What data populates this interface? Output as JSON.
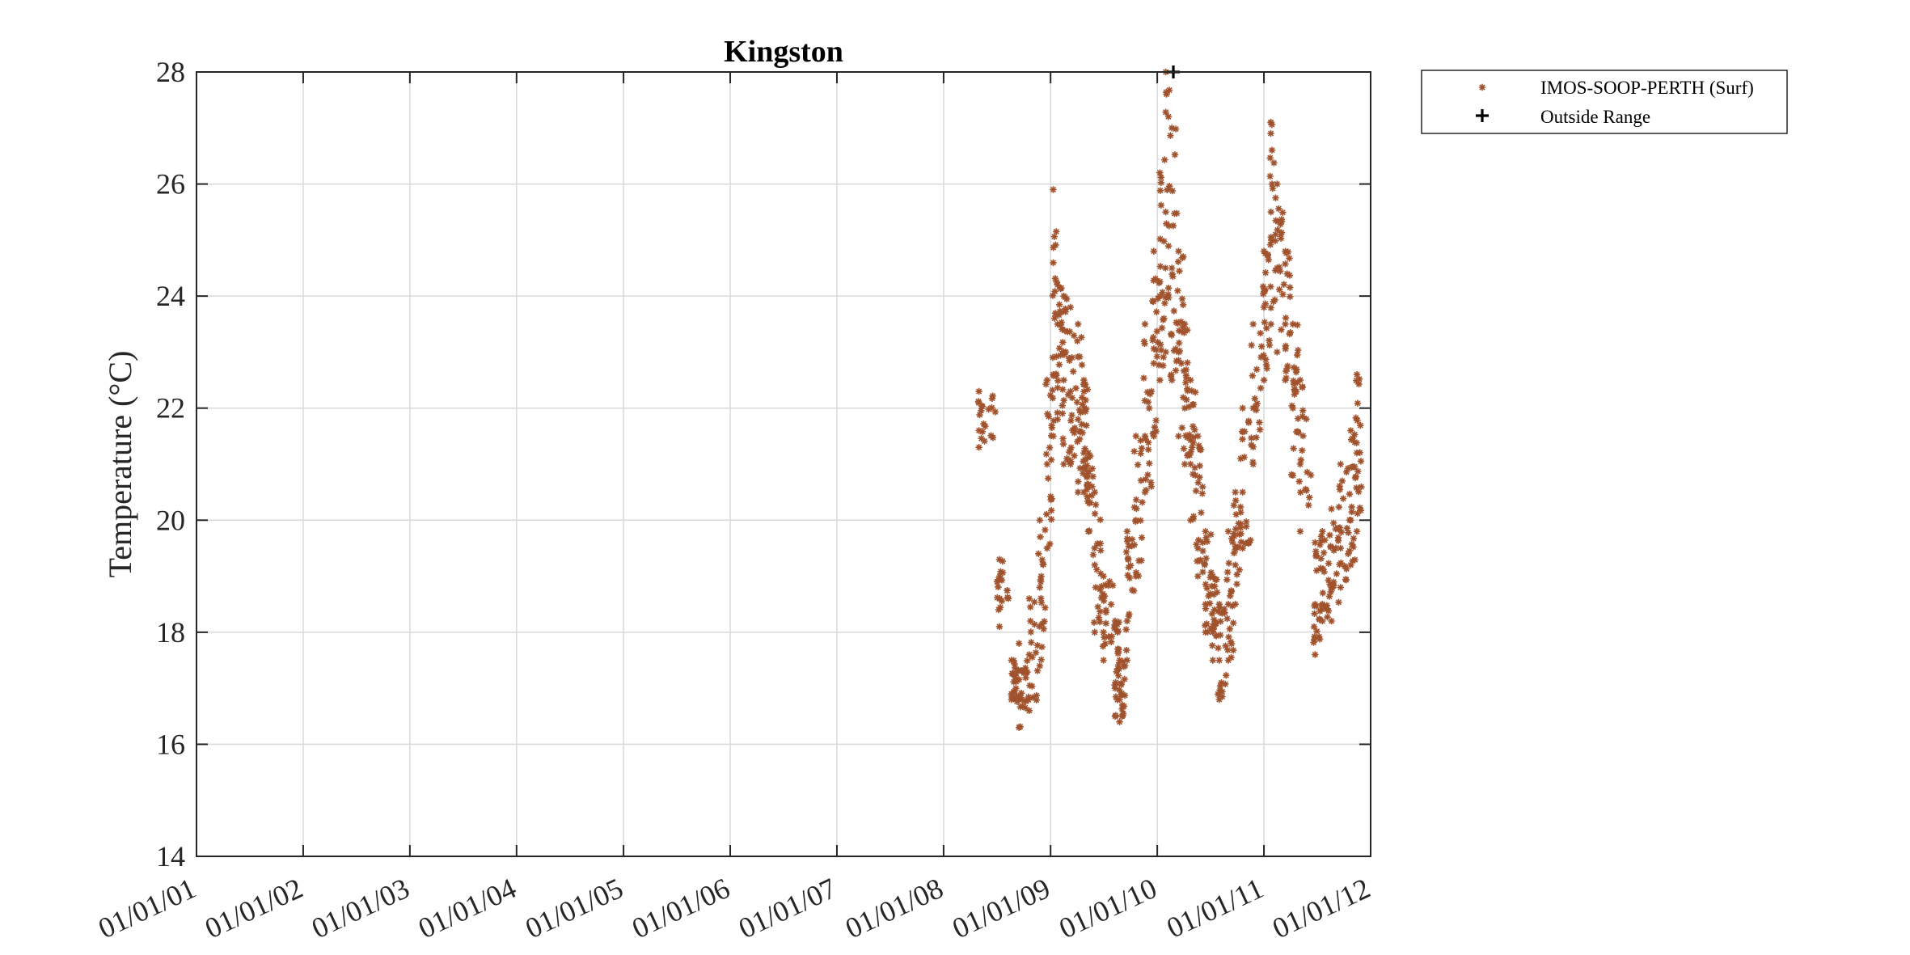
{
  "chart_data": {
    "type": "scatter",
    "title": "Kingston",
    "xlabel": "",
    "ylabel": "Temperature (°C)",
    "x_scale": "date",
    "xlim": [
      "2001-01-01",
      "2012-01-01"
    ],
    "ylim": [
      14,
      28
    ],
    "x_ticks": [
      "01/01/01",
      "01/01/02",
      "01/01/03",
      "01/01/04",
      "01/01/05",
      "01/01/06",
      "01/01/07",
      "01/01/08",
      "01/01/09",
      "01/01/10",
      "01/01/11",
      "01/01/12"
    ],
    "y_ticks": [
      14,
      16,
      18,
      20,
      22,
      24,
      26,
      28
    ],
    "grid": true,
    "legend_position": "outside-top-right",
    "series": [
      {
        "name": "IMOS-SOOP-PERTH (Surf)",
        "marker": "star",
        "color": "#a0522d",
        "x": [
          "2008-05-01",
          "2008-07-10",
          "2008-08-20",
          "2008-09-15",
          "2008-10-20",
          "2008-11-25",
          "2008-12-20",
          "2009-01-10",
          "2009-01-25",
          "2009-02-15",
          "2009-03-10",
          "2009-04-05",
          "2009-04-25",
          "2009-05-10",
          "2009-06-01",
          "2009-07-01",
          "2009-08-10",
          "2009-08-25",
          "2009-09-20",
          "2009-10-20",
          "2009-11-20",
          "2009-12-20",
          "2010-01-10",
          "2010-01-30",
          "2010-02-20",
          "2010-03-15",
          "2010-04-05",
          "2010-04-25",
          "2010-05-20",
          "2010-06-15",
          "2010-07-10",
          "2010-08-01",
          "2010-09-01",
          "2010-09-25",
          "2010-10-20",
          "2010-11-25",
          "2011-01-01",
          "2011-01-25",
          "2011-02-15",
          "2011-03-15",
          "2011-04-10",
          "2011-05-05",
          "2011-06-25",
          "2011-07-20",
          "2011-08-20",
          "2011-09-20",
          "2011-10-25",
          "2011-11-15"
        ],
        "y": [
          21.6,
          18.6,
          16.9,
          16.8,
          17.6,
          18.8,
          21.0,
          22.6,
          23.5,
          22.5,
          22.3,
          21.8,
          21.2,
          20.6,
          19.2,
          18.0,
          17.0,
          16.8,
          18.2,
          20.0,
          21.5,
          22.8,
          24.0,
          25.5,
          24.5,
          23.0,
          22.0,
          21.0,
          19.5,
          18.5,
          18.0,
          17.5,
          18.5,
          19.2,
          20.5,
          22.0,
          23.8,
          25.5,
          24.5,
          23.5,
          22.0,
          21.0,
          18.5,
          18.5,
          18.8,
          19.5,
          20.0,
          21.2
        ],
        "ranges": [
          [
            21.3,
            22.3
          ],
          [
            18.1,
            19.3
          ],
          [
            16.8,
            17.5
          ],
          [
            16.3,
            17.8
          ],
          [
            16.6,
            18.6
          ],
          [
            17.4,
            20.0
          ],
          [
            19.5,
            22.5
          ],
          [
            21.5,
            25.9
          ],
          [
            21.8,
            24.2
          ],
          [
            21.0,
            24.0
          ],
          [
            21.0,
            23.8
          ],
          [
            20.5,
            23.5
          ],
          [
            20.5,
            22.5
          ],
          [
            19.8,
            21.2
          ],
          [
            18.0,
            20.5
          ],
          [
            17.5,
            19.0
          ],
          [
            16.5,
            18.2
          ],
          [
            16.4,
            17.5
          ],
          [
            17.5,
            19.8
          ],
          [
            19.0,
            21.5
          ],
          [
            20.5,
            23.5
          ],
          [
            21.5,
            24.8
          ],
          [
            22.5,
            26.2
          ],
          [
            23.0,
            28.0
          ],
          [
            22.5,
            27.0
          ],
          [
            21.5,
            24.8
          ],
          [
            21.0,
            23.5
          ],
          [
            20.0,
            22.5
          ],
          [
            19.0,
            21.5
          ],
          [
            18.0,
            19.8
          ],
          [
            17.5,
            19.0
          ],
          [
            16.8,
            18.5
          ],
          [
            17.5,
            19.8
          ],
          [
            18.5,
            20.5
          ],
          [
            19.5,
            22.0
          ],
          [
            21.0,
            23.5
          ],
          [
            22.5,
            24.8
          ],
          [
            23.5,
            27.1
          ],
          [
            23.0,
            26.0
          ],
          [
            22.5,
            24.8
          ],
          [
            20.8,
            23.5
          ],
          [
            19.8,
            22.5
          ],
          [
            17.6,
            19.6
          ],
          [
            18.2,
            19.8
          ],
          [
            18.2,
            20.2
          ],
          [
            18.8,
            21.0
          ],
          [
            19.2,
            21.6
          ],
          [
            19.8,
            22.6
          ]
        ]
      },
      {
        "name": "Outside Range",
        "marker": "plus",
        "color": "#000000",
        "x": [
          "2010-02-25"
        ],
        "y": [
          28
        ]
      }
    ]
  }
}
